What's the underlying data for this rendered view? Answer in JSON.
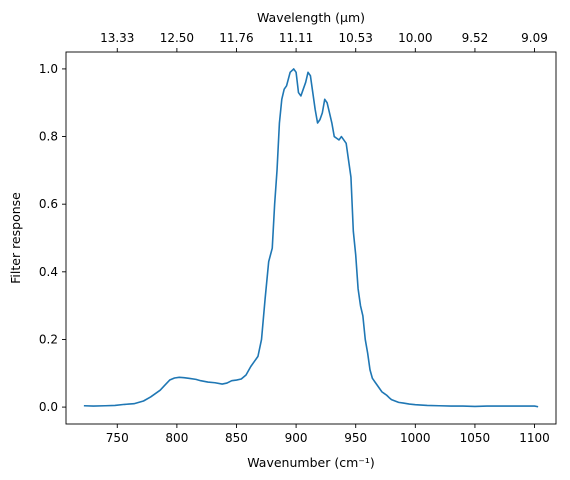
{
  "chart_data": {
    "type": "line",
    "xlabel": "Wavenumber (cm⁻¹)",
    "ylabel": "Filter response",
    "x2label": "Wavelength (μm)",
    "xlim": [
      707,
      1118
    ],
    "ylim": [
      -0.05,
      1.05
    ],
    "x_ticks": [
      750,
      800,
      850,
      900,
      950,
      1000,
      1050,
      1100
    ],
    "y_ticks": [
      0.0,
      0.2,
      0.4,
      0.6,
      0.8,
      1.0
    ],
    "y_tick_labels": [
      "0.0",
      "0.2",
      "0.4",
      "0.6",
      "0.8",
      "1.0"
    ],
    "x2_tick_labels": [
      "13.33",
      "12.50",
      "11.76",
      "11.11",
      "10.53",
      "10.00",
      "9.52",
      "9.09"
    ],
    "grid": false,
    "series": [
      {
        "color": "#1f77b4",
        "x": [
          722,
          730,
          740,
          748,
          756,
          764,
          772,
          778,
          782,
          786,
          790,
          794,
          798,
          802,
          806,
          810,
          816,
          820,
          826,
          832,
          838,
          842,
          846,
          850,
          854,
          858,
          862,
          865,
          868,
          871,
          874,
          877,
          880,
          882,
          884,
          886,
          888,
          890,
          892,
          895,
          898,
          900,
          902,
          904,
          906,
          908,
          910,
          912,
          914,
          916,
          918,
          920,
          922,
          924,
          926,
          928,
          930,
          932,
          934,
          936,
          938,
          940,
          942,
          944,
          946,
          948,
          950,
          952,
          954,
          956,
          958,
          960,
          962,
          964,
          966,
          968,
          970,
          972,
          974,
          976,
          978,
          980,
          983,
          986,
          990,
          995,
          1000,
          1005,
          1010,
          1020,
          1030,
          1040,
          1050,
          1060,
          1070,
          1080,
          1090,
          1100,
          1103
        ],
        "y": [
          0.004,
          0.003,
          0.004,
          0.005,
          0.008,
          0.01,
          0.018,
          0.03,
          0.04,
          0.05,
          0.065,
          0.08,
          0.086,
          0.088,
          0.087,
          0.085,
          0.082,
          0.078,
          0.074,
          0.072,
          0.068,
          0.071,
          0.078,
          0.08,
          0.083,
          0.095,
          0.12,
          0.135,
          0.15,
          0.2,
          0.32,
          0.43,
          0.47,
          0.6,
          0.7,
          0.84,
          0.91,
          0.94,
          0.95,
          0.99,
          1.0,
          0.99,
          0.93,
          0.92,
          0.94,
          0.96,
          0.99,
          0.98,
          0.93,
          0.88,
          0.84,
          0.85,
          0.87,
          0.91,
          0.9,
          0.87,
          0.84,
          0.8,
          0.795,
          0.79,
          0.8,
          0.79,
          0.78,
          0.73,
          0.68,
          0.52,
          0.45,
          0.35,
          0.3,
          0.27,
          0.2,
          0.16,
          0.11,
          0.085,
          0.075,
          0.065,
          0.055,
          0.045,
          0.04,
          0.035,
          0.028,
          0.022,
          0.018,
          0.014,
          0.012,
          0.009,
          0.007,
          0.006,
          0.005,
          0.004,
          0.003,
          0.003,
          0.002,
          0.003,
          0.003,
          0.003,
          0.003,
          0.003,
          0.001
        ]
      }
    ]
  }
}
